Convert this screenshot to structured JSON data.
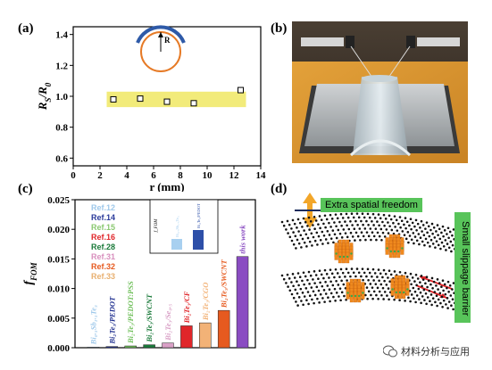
{
  "panels": {
    "a": {
      "label": "(a)",
      "chart_data": {
        "type": "scatter",
        "xlabel": "r (mm)",
        "ylabel": "R_S/R_0",
        "xlim": [
          0,
          14
        ],
        "ylim": [
          0.55,
          1.45
        ],
        "xticks": [
          0,
          2,
          4,
          6,
          8,
          10,
          12,
          14
        ],
        "yticks": [
          0.6,
          0.8,
          1.0,
          1.2,
          1.4
        ],
        "x": [
          3.0,
          5.0,
          7.0,
          9.0,
          12.5
        ],
        "y": [
          0.98,
          0.985,
          0.965,
          0.955,
          1.04
        ],
        "marker": "open-square",
        "band_color": "#f2eb7a",
        "inset_label": "R"
      }
    },
    "b": {
      "label": "(b)"
    },
    "c": {
      "label": "(c)",
      "chart_data": {
        "type": "bar",
        "ylabel": "f_FOM",
        "ylim": [
          0,
          0.025
        ],
        "yticks": [
          0.0,
          0.005,
          0.01,
          0.015,
          0.02,
          0.025
        ],
        "ytick_labels": [
          "0.000",
          "0.005",
          "0.010",
          "0.015",
          "0.020",
          "0.025"
        ],
        "categories": [
          "Bi0.5Sb1.5Te3",
          "Bi2Te3/PEDOT",
          "Bi2Te3/PEDOT:PSS",
          "Bi2Te3/SWCNT",
          "Bi2Te3/Se0.5",
          "Bi2Te3/CF",
          "Bi2Te3/CGO",
          "Bi2Te3/SWCNT",
          "this work"
        ],
        "bar_labels": [
          "Bi₀.₅Sb₁.₅Te₃",
          "Bi₂Te₃/PEDOT",
          "Bi₂Te₃/PEDOT:PSS",
          "Bi₂Te₃/SWCNT",
          "Bi₂Te₃/Se₀.₅",
          "Bi₂Te₃/CF",
          "Bi₂Te₃/CGO",
          "Bi₂Te₃/SWCNT",
          "this work"
        ],
        "values": [
          0.0001,
          0.0002,
          0.0003,
          0.0005,
          0.0008,
          0.0037,
          0.0042,
          0.0063,
          0.0154
        ],
        "colors": [
          "#9ec8ea",
          "#1f2f8f",
          "#6fbf5a",
          "#1a7a3a",
          "#d9a0c6",
          "#e0262a",
          "#f2b277",
          "#e65a1f",
          "#8a4cc2"
        ],
        "legend": [
          {
            "label": "Ref.12",
            "color": "#9ec8ea"
          },
          {
            "label": "Ref.14",
            "color": "#2a3a9a"
          },
          {
            "label": "Ref.15",
            "color": "#8ac870"
          },
          {
            "label": "Ref.16",
            "color": "#e0262a"
          },
          {
            "label": "Ref.28",
            "color": "#1a7a3a"
          },
          {
            "label": "Ref.31",
            "color": "#d88fbd"
          },
          {
            "label": "Ref.32",
            "color": "#e65a1f"
          },
          {
            "label": "Ref.33",
            "color": "#e8b070"
          }
        ],
        "inset": {
          "ylabel": "f_FOM",
          "yticks": [
            "0.0005",
            "0.0004",
            "0.0003",
            "0.0002",
            "0.0001",
            "0.0000"
          ],
          "categories": [
            "Bi0.5Sb1.5Te3",
            "Bi2Te3/PEDOT"
          ],
          "bar_labels": [
            "Bi₀.₅Sb₁.₅Te₃",
            "Bi₂Te₃/PEDOT"
          ],
          "values": [
            0.00012,
            0.00022
          ],
          "colors": [
            "#a8d0f0",
            "#2d4fa8"
          ]
        }
      }
    },
    "d": {
      "label": "(d)",
      "top_box": "Extra spatial freedom",
      "side_box": "Small slippage barrier"
    }
  },
  "watermark": "材料分析与应用"
}
